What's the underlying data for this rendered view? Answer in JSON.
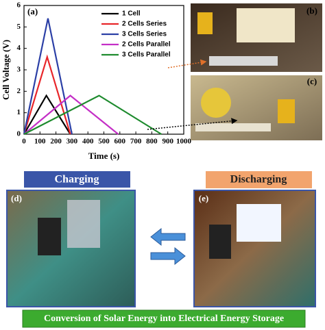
{
  "chart_data": {
    "type": "line",
    "panel_label": "(a)",
    "x_label": "Time (s)",
    "y_label": "Cell Voltage (V)",
    "xlim": [
      0,
      1000
    ],
    "xticks": [
      0,
      100,
      200,
      300,
      400,
      500,
      600,
      700,
      800,
      900,
      1000
    ],
    "ylim": [
      0,
      6
    ],
    "yticks": [
      0,
      1,
      2,
      3,
      4,
      5,
      6
    ],
    "legend": "upper right",
    "series": [
      {
        "name": "1 Cell",
        "color": "#000000",
        "x": [
          0,
          140,
          290
        ],
        "values": [
          0,
          1.8,
          0
        ]
      },
      {
        "name": "2 Cells Series",
        "color": "#e8262a",
        "x": [
          0,
          145,
          290
        ],
        "values": [
          0,
          3.6,
          0
        ]
      },
      {
        "name": "3 Cells Series",
        "color": "#2b3fa6",
        "x": [
          0,
          150,
          300
        ],
        "values": [
          0,
          5.4,
          0
        ]
      },
      {
        "name": "2 Cells Parallel",
        "color": "#c42fc6",
        "x": [
          0,
          290,
          590
        ],
        "values": [
          0,
          1.8,
          0
        ]
      },
      {
        "name": "3 Cells Parallel",
        "color": "#1e8b2e",
        "x": [
          0,
          470,
          860
        ],
        "values": [
          0,
          1.8,
          0
        ]
      }
    ]
  },
  "panels": {
    "b": "(b)",
    "c": "(c)",
    "d": "(d)",
    "e": "(e)"
  },
  "charging": "Charging",
  "discharging": "Discharging",
  "caption": "Conversion of Solar Energy into Electrical Energy Storage"
}
